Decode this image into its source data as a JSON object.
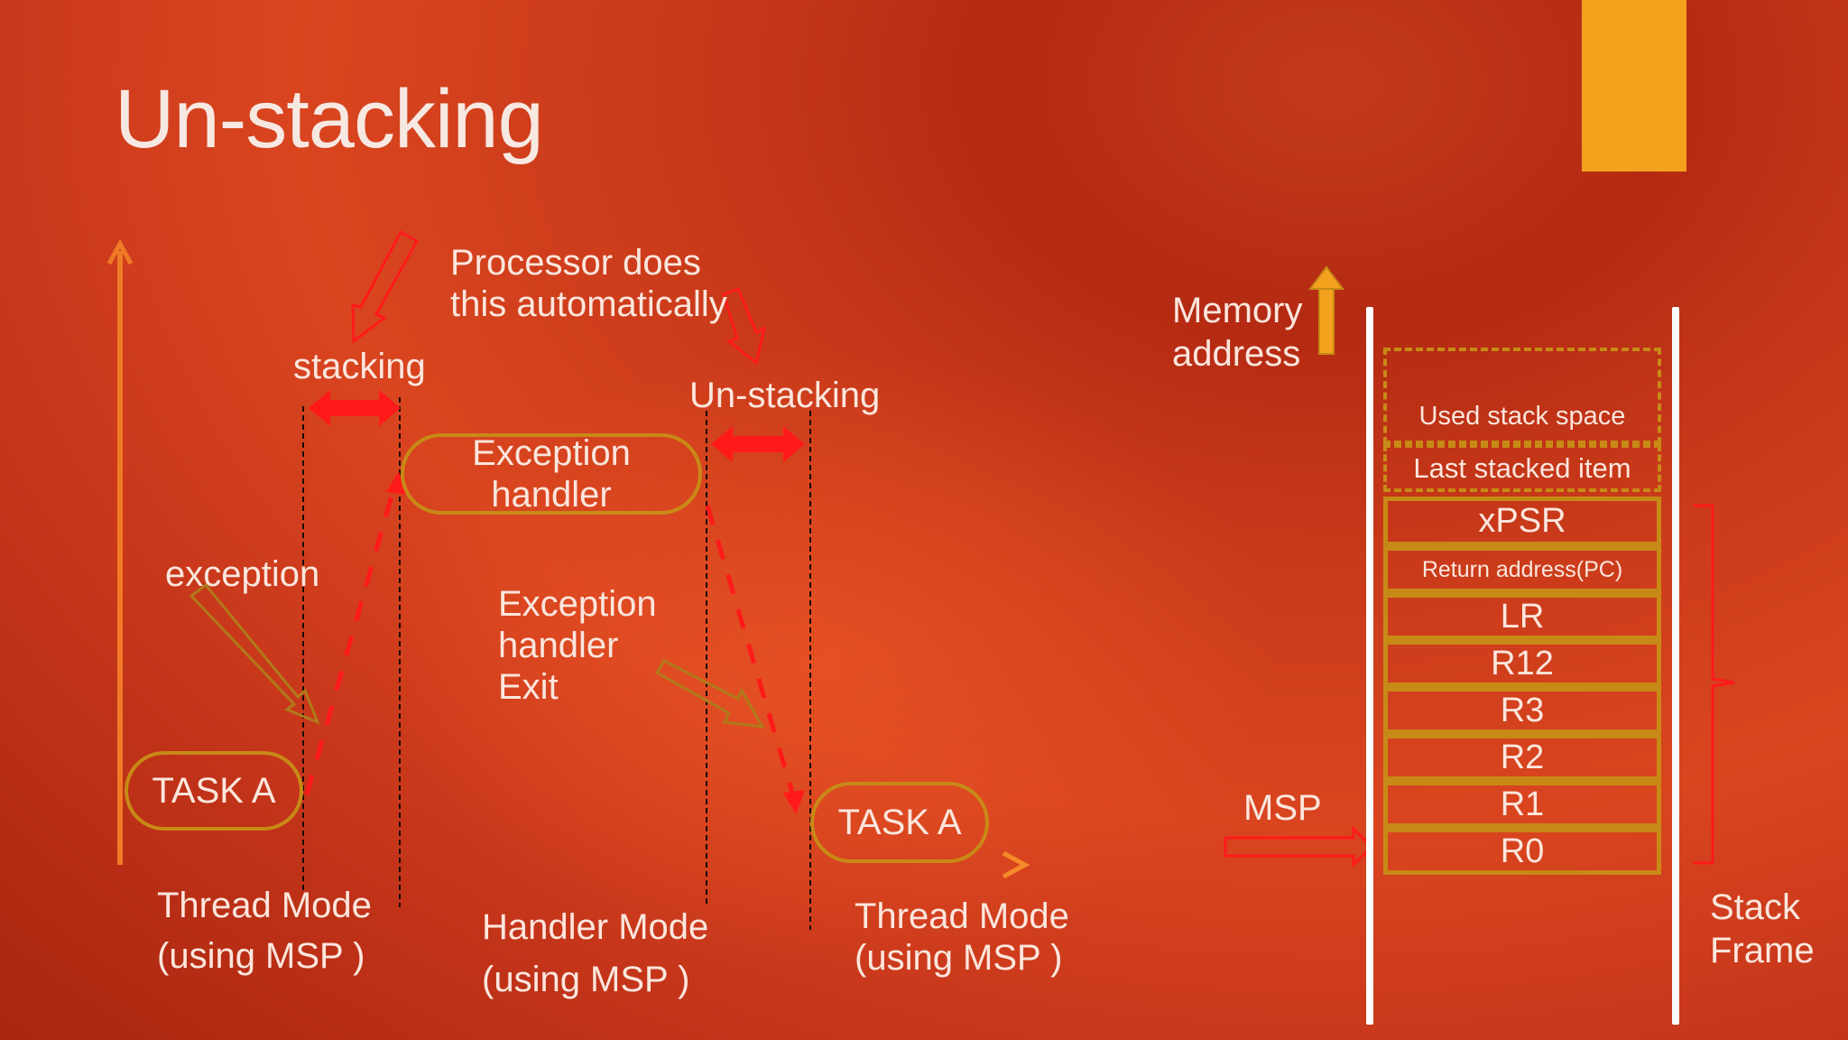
{
  "slide": {
    "title": "Un-stacking"
  },
  "labels": {
    "processor_note": "Processor does\nthis automatically",
    "stacking": "stacking",
    "unstacking": "Un-stacking",
    "exception": "exception",
    "exception_handler": "Exception\nhandler",
    "exception_handler_exit": "Exception\nhandler\nExit",
    "task_a_left": "TASK A",
    "task_a_right": "TASK A",
    "thread_mode_left": "Thread Mode\n(using MSP )",
    "handler_mode": "Handler Mode\n(using MSP )",
    "thread_mode_right": "Thread Mode\n(using MSP )",
    "memory_address": "Memory\naddress",
    "msp": "MSP",
    "stack_frame": "Stack\nFrame"
  },
  "stack": {
    "used_space": "Used stack space",
    "last_item": "Last stacked item",
    "frame": [
      "xPSR",
      "Return address(PC)",
      "LR",
      "R12",
      "R3",
      "R2",
      "R1",
      "R0"
    ]
  },
  "colors": {
    "accent_bar": "#f4a11e",
    "axis": "#f58a2a",
    "outline": "#c88a16",
    "red_arrow": "#ff1a1a",
    "text": "#fbe6dd"
  }
}
